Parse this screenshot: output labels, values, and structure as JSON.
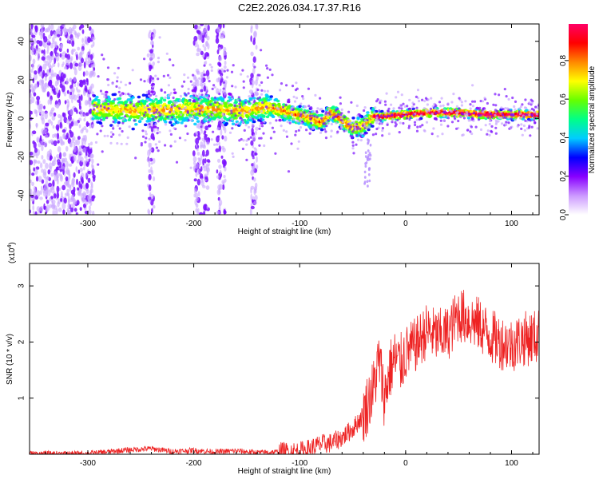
{
  "title": "C2E2.2026.034.17.37.R16",
  "chart_data": [
    {
      "type": "heatmap",
      "xlabel": "Height of straight line (km)",
      "ylabel": "Frequency (Hz)",
      "xlim": [
        -355,
        126
      ],
      "ylim": [
        -50,
        49
      ],
      "xticks": [
        -300,
        -200,
        -100,
        0,
        100
      ],
      "yticks": [
        -40,
        -20,
        0,
        20,
        40
      ],
      "colorbar": {
        "label": "Normalized spectral amplitude",
        "range": [
          0,
          0.99
        ],
        "ticks": [
          "0.0",
          "0.2",
          "0.4",
          "0.6",
          "0.8"
        ],
        "colormap": [
          "#ffffff",
          "#cc99ff",
          "#8800ff",
          "#0000ff",
          "#00ccff",
          "#00ff88",
          "#66ff00",
          "#ffff00",
          "#ff8800",
          "#ff0000",
          "#ff0066"
        ]
      },
      "noise_bands": [
        [
          -355,
          -294
        ],
        [
          -243,
          -237
        ],
        [
          -200,
          -186
        ],
        [
          -178,
          -170
        ],
        [
          -146,
          -140
        ]
      ],
      "ridge": {
        "x": [
          -295,
          -250,
          -200,
          -150,
          -130,
          -110,
          -95,
          -80,
          -70,
          -60,
          -50,
          -40,
          -30,
          -20,
          0,
          25,
          50,
          75,
          100,
          126
        ],
        "y": [
          5,
          4,
          5,
          4,
          6,
          3,
          1,
          -2,
          3,
          -1,
          -5,
          -4,
          1,
          1,
          2,
          3,
          3,
          2,
          2,
          2
        ]
      },
      "grid": false
    },
    {
      "type": "line",
      "xlabel": "Height of straight line (km)",
      "ylabel": "SNR (10 * v/v)",
      "yscale_label": "(x10",
      "yscale_exp": "4",
      "xlim": [
        -355,
        126
      ],
      "ylim": [
        0,
        3.4
      ],
      "xticks": [
        -300,
        -200,
        -100,
        0,
        100
      ],
      "yticks": [
        1,
        2,
        3
      ],
      "color": "#ee2222",
      "series": [
        {
          "x": [
            -355,
            -300,
            -260,
            -240,
            -220,
            -200,
            -180,
            -160,
            -140,
            -120,
            -100,
            -90,
            -80,
            -70,
            -60,
            -50,
            -40,
            -30,
            -25,
            -20,
            -15,
            -10,
            -5,
            0,
            10,
            20,
            30,
            40,
            50,
            60,
            70,
            80,
            90,
            100,
            110,
            126
          ],
          "y": [
            0.01,
            0.01,
            0.08,
            0.1,
            0.05,
            0.07,
            0.04,
            0.06,
            0.03,
            0.04,
            0.05,
            0.1,
            0.18,
            0.2,
            0.3,
            0.45,
            0.7,
            1.2,
            1.7,
            1.0,
            1.5,
            1.7,
            1.6,
            1.8,
            1.95,
            2.2,
            2.1,
            2.15,
            2.5,
            2.4,
            2.3,
            2.1,
            2.0,
            1.95,
            2.05,
            2.1
          ]
        }
      ],
      "grid": false
    }
  ]
}
